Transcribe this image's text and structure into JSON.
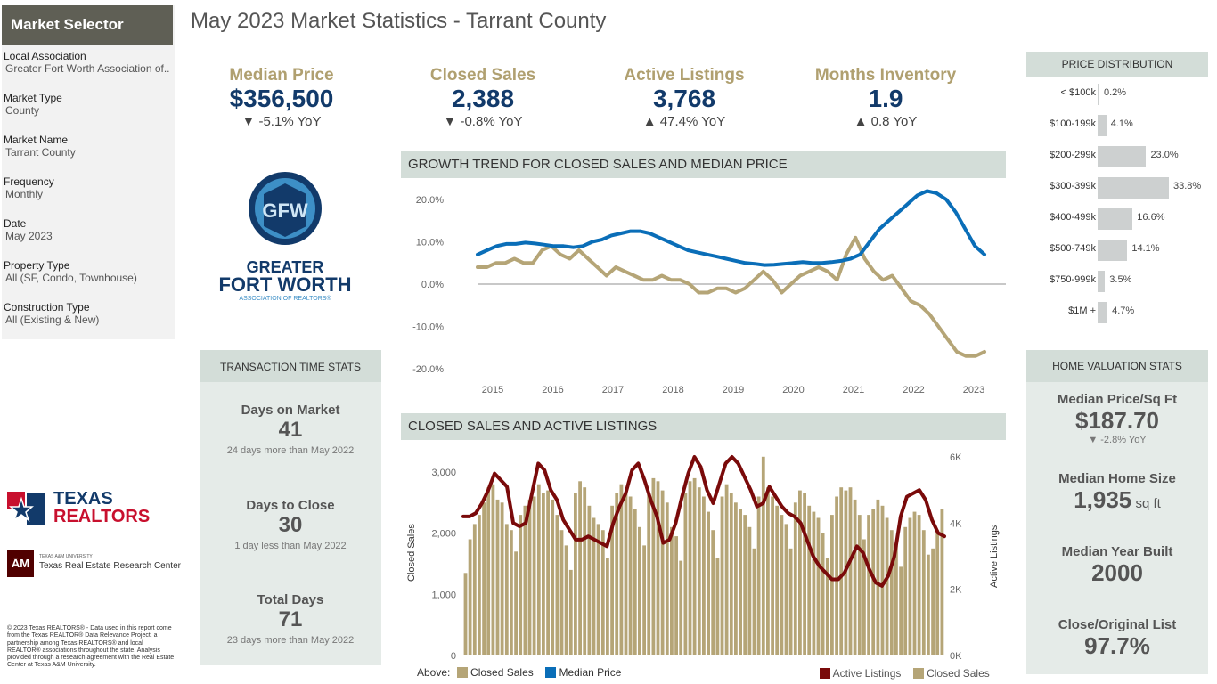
{
  "sidebar": {
    "title": "Market Selector",
    "fields": [
      {
        "label": "Local Association",
        "value": "Greater Fort Worth Association of.."
      },
      {
        "label": "Market Type",
        "value": "County"
      },
      {
        "label": "Market Name",
        "value": "Tarrant County"
      },
      {
        "label": "Frequency",
        "value": "Monthly"
      },
      {
        "label": "Date",
        "value": "May 2023"
      },
      {
        "label": "Property Type",
        "value": "All (SF, Condo, Townhouse)"
      },
      {
        "label": "Construction Type",
        "value": "All (Existing & New)"
      }
    ]
  },
  "title": "May 2023 Market Statistics - Tarrant County",
  "kpis": [
    {
      "label": "Median Price",
      "value": "$356,500",
      "change": "▼ -5.1% YoY"
    },
    {
      "label": "Closed Sales",
      "value": "2,388",
      "change": "▼ -0.8% YoY"
    },
    {
      "label": "Active Listings",
      "value": "3,768",
      "change": "▲ 47.4% YoY"
    },
    {
      "label": "Months Inventory",
      "value": "1.9",
      "change": "▲ 0.8 YoY"
    }
  ],
  "logo": {
    "line1": "GREATER",
    "line2": "FORT WORTH",
    "line3": "ASSOCIATION OF REALTORS®",
    "monogram": "GFW"
  },
  "transaction": {
    "header": "TRANSACTION TIME STATS",
    "items": [
      {
        "label": "Days on Market",
        "value": "41",
        "sub": "24 days more than May 2022"
      },
      {
        "label": "Days to Close",
        "value": "30",
        "sub": "1 day less than May 2022"
      },
      {
        "label": "Total Days",
        "value": "71",
        "sub": "23 days more than May 2022"
      }
    ]
  },
  "texas_realtors": {
    "line1": "TEXAS",
    "line2": "REALTORS"
  },
  "tamu": {
    "small": "TEXAS A&M UNIVERSITY",
    "name": "Texas Real Estate Research Center",
    "mark": "ĀM"
  },
  "copyright": "© 2023 Texas REALTORS® - Data used in this report come from the Texas REALTOR® Data Relevance Project, a partnership among Texas REALTORS® and local REALTOR® associations throughout the state. Analysis provided through a research agreement with the Real Estate Center at Texas A&M University.",
  "growth": {
    "header": "GROWTH TREND FOR CLOSED SALES AND MEDIAN PRICE"
  },
  "closed": {
    "header": "CLOSED SALES AND ACTIVE LISTINGS",
    "legend_prefix": "Above:",
    "legend_closed": "Closed Sales",
    "legend_median": "Median Price",
    "legend_active": "Active Listings",
    "legend_closed2": "Closed Sales",
    "y_left": "Closed Sales",
    "y_right": "Active Listings"
  },
  "price_dist": {
    "header": "PRICE DISTRIBUTION",
    "rows": [
      {
        "label": "< $100k",
        "value": "0.2%",
        "pct": 0.2
      },
      {
        "label": "$100-199k",
        "value": "4.1%",
        "pct": 4.1
      },
      {
        "label": "$200-299k",
        "value": "23.0%",
        "pct": 23.0
      },
      {
        "label": "$300-399k",
        "value": "33.8%",
        "pct": 33.8
      },
      {
        "label": "$400-499k",
        "value": "16.6%",
        "pct": 16.6
      },
      {
        "label": "$500-749k",
        "value": "14.1%",
        "pct": 14.1
      },
      {
        "label": "$750-999k",
        "value": "3.5%",
        "pct": 3.5
      },
      {
        "label": "$1M +",
        "value": "4.7%",
        "pct": 4.7
      }
    ]
  },
  "valuation": {
    "header": "HOME VALUATION STATS",
    "items": [
      {
        "label": "Median Price/Sq Ft",
        "value": "$187.70",
        "sub": "▼ -2.8% YoY"
      },
      {
        "label": "Median Home Size",
        "value": "1,935",
        "unit": " sq ft"
      },
      {
        "label": "Median Year Built",
        "value": "2000"
      },
      {
        "label": "Close/Original List",
        "value": "97.7%"
      }
    ]
  },
  "colors": {
    "gold": "#b0a070",
    "blue": "#0a6eb8",
    "maroon": "#7a0a0a",
    "bar": "#b5a577",
    "navy": "#123a6a"
  },
  "chart_data": [
    {
      "type": "line",
      "title": "GROWTH TREND FOR CLOSED SALES AND MEDIAN PRICE",
      "x_ticks": [
        "2015",
        "2016",
        "2017",
        "2018",
        "2019",
        "2020",
        "2021",
        "2022",
        "2023"
      ],
      "y_ticks": [
        "20.0%",
        "10.0%",
        "0.0%",
        "-10.0%",
        "-20.0%"
      ],
      "ylim": [
        -20,
        20
      ],
      "series": [
        {
          "name": "Closed Sales",
          "values": [
            4,
            4,
            5,
            5,
            6,
            5,
            5,
            8,
            9,
            7,
            6,
            8,
            6,
            4,
            2,
            4,
            3,
            2,
            1,
            1,
            2,
            1,
            1,
            0,
            -2,
            -2,
            -1,
            -1,
            -2,
            -1,
            1,
            3,
            1,
            -2,
            0,
            2,
            3,
            4,
            3,
            1,
            7,
            11,
            6,
            3,
            1,
            2,
            -1,
            -4,
            -5,
            -7,
            -10,
            -13,
            -16,
            -17,
            -17,
            -16
          ]
        },
        {
          "name": "Median Price",
          "values": [
            7,
            8,
            9,
            9.5,
            9.5,
            9.8,
            9.6,
            9.3,
            9,
            9,
            8.7,
            9,
            10,
            10.5,
            11.5,
            12,
            12.5,
            12.5,
            12,
            11,
            10,
            9,
            8,
            7.5,
            7,
            6.5,
            6,
            5.5,
            5,
            4.8,
            4.5,
            4.6,
            4.8,
            5,
            5.2,
            5,
            5,
            5.2,
            5.5,
            6,
            7,
            10,
            13,
            15,
            17,
            19,
            21,
            22,
            21.5,
            20,
            17,
            13,
            9,
            7
          ]
        }
      ]
    },
    {
      "type": "bar",
      "title": "CLOSED SALES AND ACTIVE LISTINGS",
      "x_ticks": [
        "2015",
        "2016",
        "2017",
        "2018",
        "2019",
        "2020",
        "2021",
        "2022",
        "2023"
      ],
      "y_ticks_left": [
        "3,000",
        "2,000",
        "1,000",
        "0"
      ],
      "y_ticks_right": [
        "6K",
        "4K",
        "2K",
        "0K"
      ],
      "ylim_left": [
        0,
        3000
      ],
      "ylim_right": [
        0,
        6000
      ],
      "series": [
        {
          "name": "Closed Sales",
          "values": [
            1350,
            1900,
            2150,
            2300,
            2500,
            2750,
            2800,
            2550,
            2500,
            2150,
            2050,
            1700,
            2300,
            2450,
            2550,
            2600,
            2800,
            2650,
            2700,
            2550,
            2300,
            2050,
            1800,
            1400,
            2650,
            2850,
            2750,
            2450,
            2250,
            2150,
            2050,
            1600,
            2450,
            2650,
            2800,
            2650,
            2600,
            2400,
            2100,
            1800,
            2650,
            2900,
            2850,
            2700,
            2500,
            2100,
            1950,
            1550,
            2650,
            2850,
            2900,
            2750,
            2600,
            2350,
            2050,
            1600,
            2600,
            2800,
            2650,
            2500,
            2400,
            2300,
            2100,
            1750,
            2600,
            3250,
            2750,
            2600,
            2450,
            2300,
            2150,
            1750,
            2500,
            2700,
            2650,
            2450,
            2350,
            2250,
            2000,
            1600,
            2300,
            2600,
            2750,
            2700,
            2750,
            2550,
            2300,
            1900,
            2300,
            2400,
            2550,
            2450,
            2250,
            2050,
            1800,
            1450,
            2100,
            2250,
            2350,
            2300,
            2050,
            1650,
            1750,
            2050,
            2400
          ]
        },
        {
          "name": "Active Listings",
          "values": [
            4200,
            4200,
            4300,
            4600,
            5000,
            5500,
            5300,
            5100,
            4000,
            3900,
            4000,
            4900,
            5800,
            5600,
            5000,
            4700,
            4100,
            3800,
            3500,
            3500,
            3600,
            3500,
            3400,
            3300,
            4000,
            4500,
            4900,
            5600,
            5800,
            5300,
            4700,
            4200,
            3400,
            3500,
            4000,
            4800,
            5500,
            6000,
            5700,
            5000,
            4600,
            5200,
            5800,
            6000,
            5800,
            5400,
            5000,
            4500,
            4600,
            5100,
            4800,
            4500,
            4300,
            4200,
            4000,
            3500,
            3000,
            2700,
            2500,
            2300,
            2300,
            2500,
            2900,
            3300,
            3100,
            2600,
            2200,
            2100,
            2400,
            3000,
            4200,
            4800,
            4900,
            5000,
            4700,
            4100,
            3700,
            3600
          ]
        }
      ]
    },
    {
      "type": "bar",
      "title": "PRICE DISTRIBUTION",
      "categories": [
        "< $100k",
        "$100-199k",
        "$200-299k",
        "$300-399k",
        "$400-499k",
        "$500-749k",
        "$750-999k",
        "$1M +"
      ],
      "values": [
        0.2,
        4.1,
        23.0,
        33.8,
        16.6,
        14.1,
        3.5,
        4.7
      ]
    }
  ]
}
